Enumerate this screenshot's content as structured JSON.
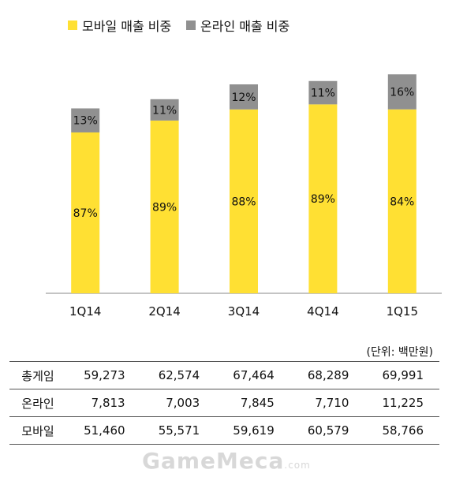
{
  "chart_data": {
    "type": "bar",
    "stacked": true,
    "categories": [
      "1Q14",
      "2Q14",
      "3Q14",
      "4Q14",
      "1Q15"
    ],
    "series": [
      {
        "name": "모바일 매출 비중",
        "values": [
          87,
          89,
          88,
          89,
          84
        ],
        "labels": [
          "87%",
          "89%",
          "88%",
          "89%",
          "84%"
        ],
        "color": "#FFE033"
      },
      {
        "name": "온라인 매출 비중",
        "values": [
          13,
          11,
          12,
          11,
          16
        ],
        "labels": [
          "13%",
          "11%",
          "12%",
          "11%",
          "16%"
        ],
        "color": "#909090"
      }
    ],
    "total_heights": [
      100,
      100,
      100,
      100,
      100
    ],
    "bar_tops_relative": [
      0.885,
      0.929,
      1.0,
      1.016,
      1.048
    ],
    "legend_position": "top",
    "grid": false
  },
  "table": {
    "unit_label": "(단위: 백만원)",
    "rows": [
      {
        "label": "총게임",
        "values": [
          "59,273",
          "62,574",
          "67,464",
          "68,289",
          "69,991"
        ]
      },
      {
        "label": "온라인",
        "values": [
          "7,813",
          "7,003",
          "7,845",
          "7,710",
          "11,225"
        ]
      },
      {
        "label": "모바일",
        "values": [
          "51,460",
          "55,571",
          "59,619",
          "60,579",
          "58,766"
        ]
      }
    ]
  },
  "watermark": {
    "brand": "GameMeca",
    "suffix": ".com"
  }
}
